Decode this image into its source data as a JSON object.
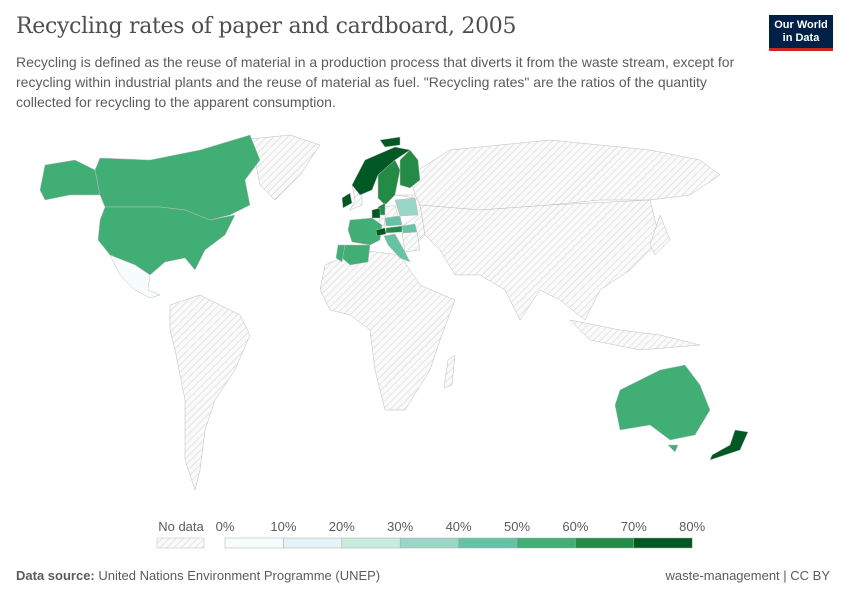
{
  "header": {
    "title": "Recycling rates of paper and cardboard, 2005",
    "subtitle": "Recycling is defined as the reuse of material in a production process that diverts it from the waste stream, except for recycling within industrial plants and the reuse of material as fuel. \"Recycling rates\" are the ratios of the quantity collected for recycling to the apparent consumption.",
    "logo": "Our World in Data"
  },
  "legend": {
    "no_data_label": "No data",
    "ticks": [
      "0%",
      "10%",
      "20%",
      "30%",
      "40%",
      "50%",
      "60%",
      "70%",
      "80%"
    ],
    "colors": [
      "#f7fcfd",
      "#e5f3f8",
      "#c8eadf",
      "#99d6c6",
      "#66c2a4",
      "#41ae76",
      "#238b45",
      "#005824"
    ],
    "no_data_color": "#e0e0e0"
  },
  "map_data": {
    "Canada": "50-60%",
    "United States": "50-60%",
    "Mexico": "0-10%",
    "Norway": "70-80%",
    "Svalbard": "70-80%",
    "Sweden": "60-70%",
    "Finland": "60-70%",
    "Ireland": "70-80%",
    "Denmark": "60-70%",
    "Netherlands": "70-80%",
    "Switzerland": "70-80%",
    "Austria": "60-70%",
    "France": "50-60%",
    "Spain": "50-60%",
    "Portugal": "50-60%",
    "Italy": "40-50%",
    "Czechia": "40-50%",
    "Hungary": "40-50%",
    "Poland": "30-40%",
    "Australia": "50-60%",
    "New Zealand": "70-80%"
  },
  "footer": {
    "source_label": "Data source:",
    "source": "United Nations Environment Programme (UNEP)",
    "right": "waste-management | CC BY"
  }
}
